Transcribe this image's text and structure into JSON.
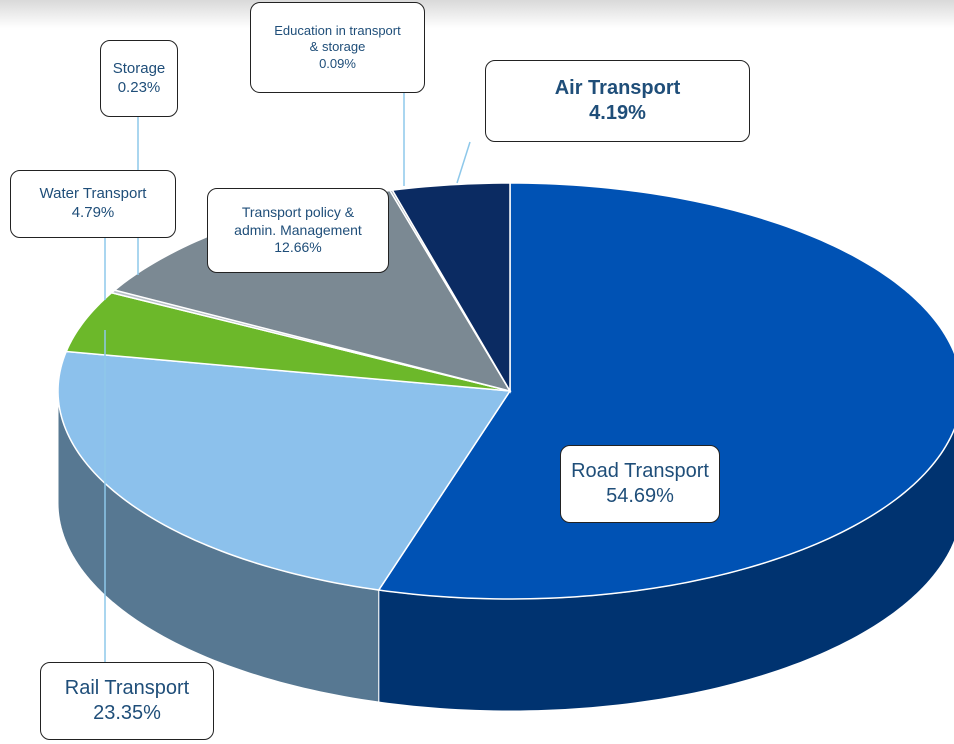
{
  "chart_data": {
    "type": "pie",
    "categories": [
      "Road Transport",
      "Rail Transport",
      "Water Transport",
      "Storage",
      "Transport policy & admin. Management",
      "Education in transport & storage",
      "Air Transport"
    ],
    "values": [
      54.69,
      23.35,
      4.79,
      0.23,
      12.66,
      0.09,
      4.19
    ],
    "value_labels": [
      "54.69%",
      "23.35%",
      "4.79%",
      "0.23%",
      "12.66%",
      "0.09%",
      "4.19%"
    ],
    "colors": [
      "#0052b4",
      "#8cc1ec",
      "#6cb82a",
      "#b8c0c6",
      "#7b8993",
      "#a0a8ae",
      "#0b2b62"
    ]
  }
}
